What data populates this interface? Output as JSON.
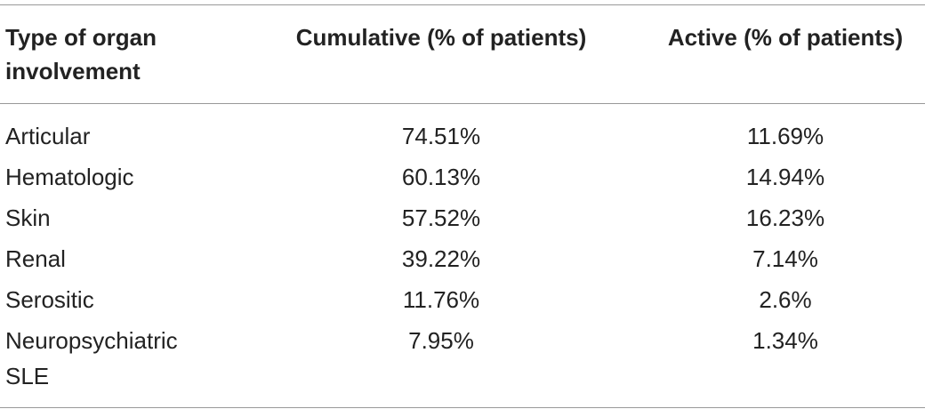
{
  "table": {
    "header": [
      "Type of organ involvement",
      "Cumulative (% of patients)",
      "Active (% of patients)"
    ],
    "rows": [
      [
        "Articular",
        "74.51%",
        "11.69%"
      ],
      [
        "Hematologic",
        "60.13%",
        "14.94%"
      ],
      [
        "Skin",
        "57.52%",
        "16.23%"
      ],
      [
        "Renal",
        "39.22%",
        "7.14%"
      ],
      [
        "Serositic",
        "11.76%",
        "2.6%"
      ],
      [
        "Neuropsychiatric SLE",
        "7.95%",
        "1.34%"
      ]
    ]
  }
}
